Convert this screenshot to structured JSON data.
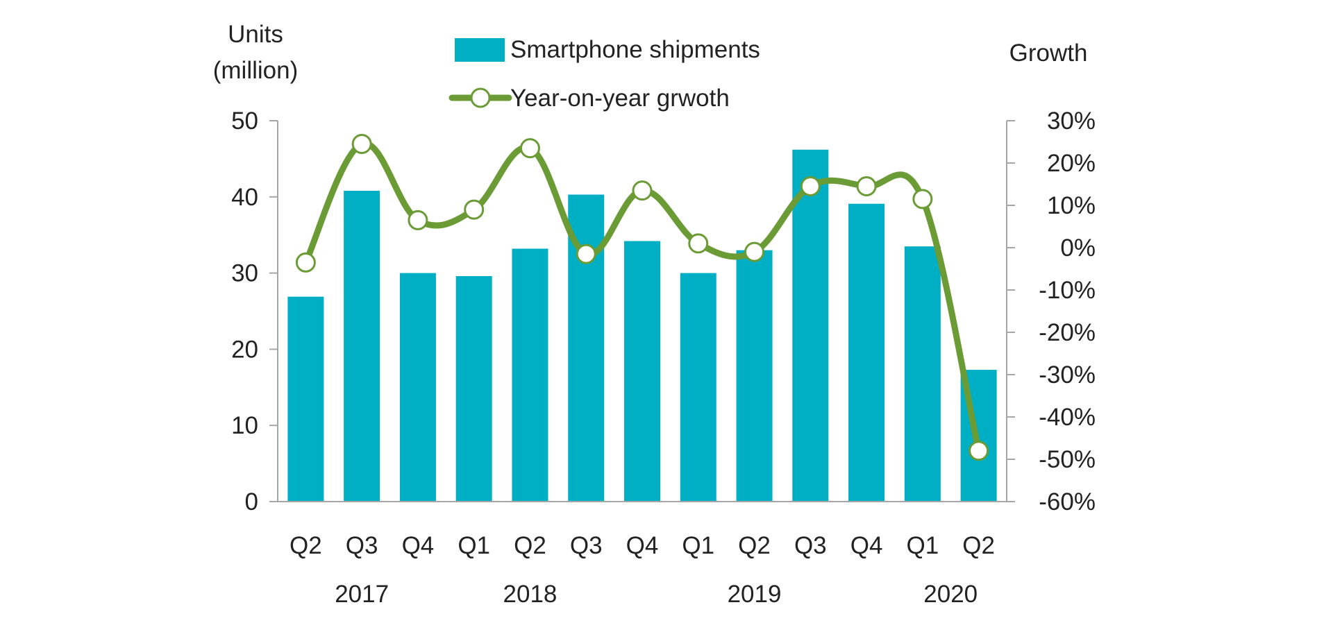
{
  "chart_data": {
    "type": "bar",
    "categories": [
      "Q2",
      "Q3",
      "Q4",
      "Q1",
      "Q2",
      "Q3",
      "Q4",
      "Q1",
      "Q2",
      "Q3",
      "Q4",
      "Q1",
      "Q2"
    ],
    "year_labels": [
      {
        "label": "2017",
        "category_index": 1
      },
      {
        "label": "2018",
        "category_index": 4
      },
      {
        "label": "2019",
        "category_index": 8
      },
      {
        "label": "2020",
        "category_index": 11.5
      }
    ],
    "series": [
      {
        "name": "Smartphone shipments",
        "kind": "bar",
        "axis": "left",
        "color": "#00AFC4",
        "values": [
          26.9,
          40.8,
          30.0,
          29.6,
          33.2,
          40.3,
          34.2,
          30.0,
          33.0,
          46.2,
          39.1,
          33.5,
          17.3
        ]
      },
      {
        "name": "Year-on-year grwoth",
        "kind": "line",
        "axis": "right",
        "color": "#6B9B35",
        "marker_fill": "#ffffff",
        "values": [
          -3.5,
          24.5,
          6.5,
          9.0,
          23.5,
          -1.5,
          13.5,
          1.0,
          -1.0,
          14.5,
          14.5,
          11.5,
          -48.0
        ]
      }
    ],
    "left_axis": {
      "title_line1": "Units",
      "title_line2": "(million)",
      "ylim": [
        0,
        50
      ],
      "ticks": [
        0,
        10,
        20,
        30,
        40,
        50
      ],
      "tick_labels": [
        "0",
        "10",
        "20",
        "30",
        "40",
        "50"
      ]
    },
    "right_axis": {
      "title": "Growth",
      "ylim": [
        -60,
        30
      ],
      "ticks": [
        -60,
        -50,
        -40,
        -30,
        -20,
        -10,
        0,
        10,
        20,
        30
      ],
      "tick_labels": [
        "-60%",
        "-50%",
        "-40%",
        "-30%",
        "-20%",
        "-10%",
        "0%",
        "10%",
        "20%",
        "30%"
      ]
    },
    "legend": {
      "position": "top-center",
      "bar_label": "Smartphone shipments",
      "line_label": "Year-on-year grwoth"
    },
    "grid": false,
    "axis_color": "#A6A6A6"
  }
}
